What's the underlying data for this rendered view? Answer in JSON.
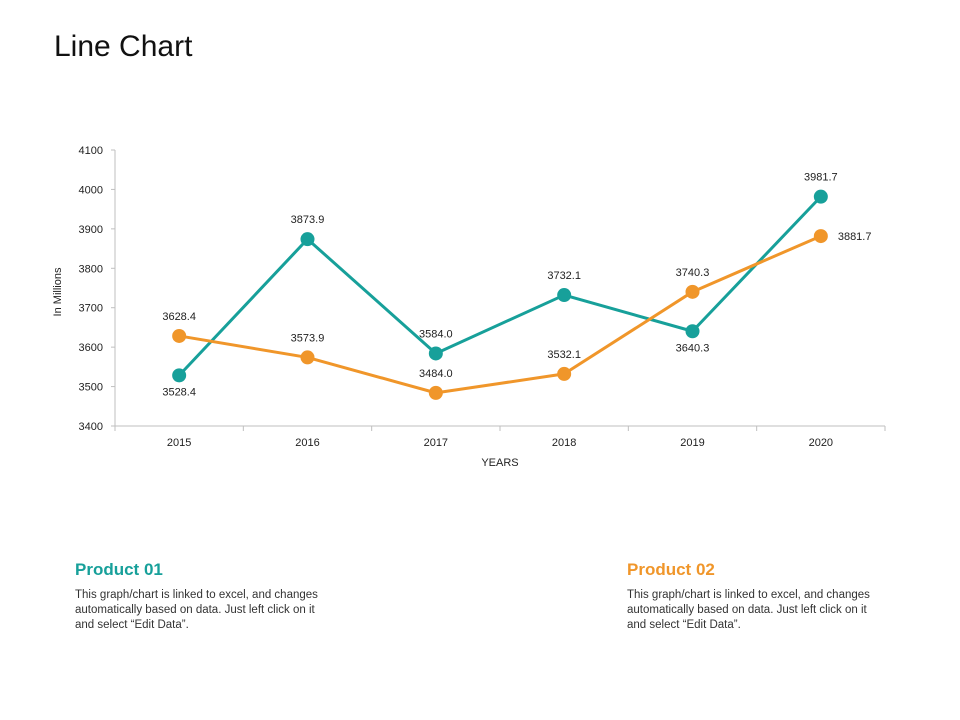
{
  "page": {
    "title": "Line Chart"
  },
  "colors": {
    "product1": "#17a09a",
    "product2": "#f0962a",
    "axis": "#bfbfbf",
    "text": "#222222"
  },
  "chart_data": {
    "type": "line",
    "title": "",
    "xlabel": "YEARS",
    "ylabel": "In Millions",
    "categories": [
      "2015",
      "2016",
      "2017",
      "2018",
      "2019",
      "2020"
    ],
    "ylim": [
      3400,
      4100
    ],
    "yticks": [
      3400,
      3500,
      3600,
      3700,
      3800,
      3900,
      4000,
      4100
    ],
    "grid": false,
    "series": [
      {
        "name": "Product 01",
        "color": "#17a09a",
        "values": [
          3528.4,
          3873.9,
          3584.0,
          3732.1,
          3640.3,
          3981.7
        ],
        "labels": [
          "3528.4",
          "3873.9",
          "3584.0",
          "3732.1",
          "3640.3",
          "3981.7"
        ]
      },
      {
        "name": "Product 02",
        "color": "#f0962a",
        "values": [
          3628.4,
          3573.9,
          3484.0,
          3532.1,
          3740.3,
          3881.7
        ],
        "labels": [
          "3628.4",
          "3573.9",
          "3484.0",
          "3532.1",
          "3740.3",
          "3881.7"
        ]
      }
    ]
  },
  "legend": [
    {
      "title": "Product 01",
      "description": "This graph/chart is linked to excel, and changes automatically based on data. Just left click on it and select “Edit Data”."
    },
    {
      "title": "Product 02",
      "description": "This graph/chart is linked to excel, and changes automatically based on data. Just left click on it and select “Edit Data”."
    }
  ]
}
